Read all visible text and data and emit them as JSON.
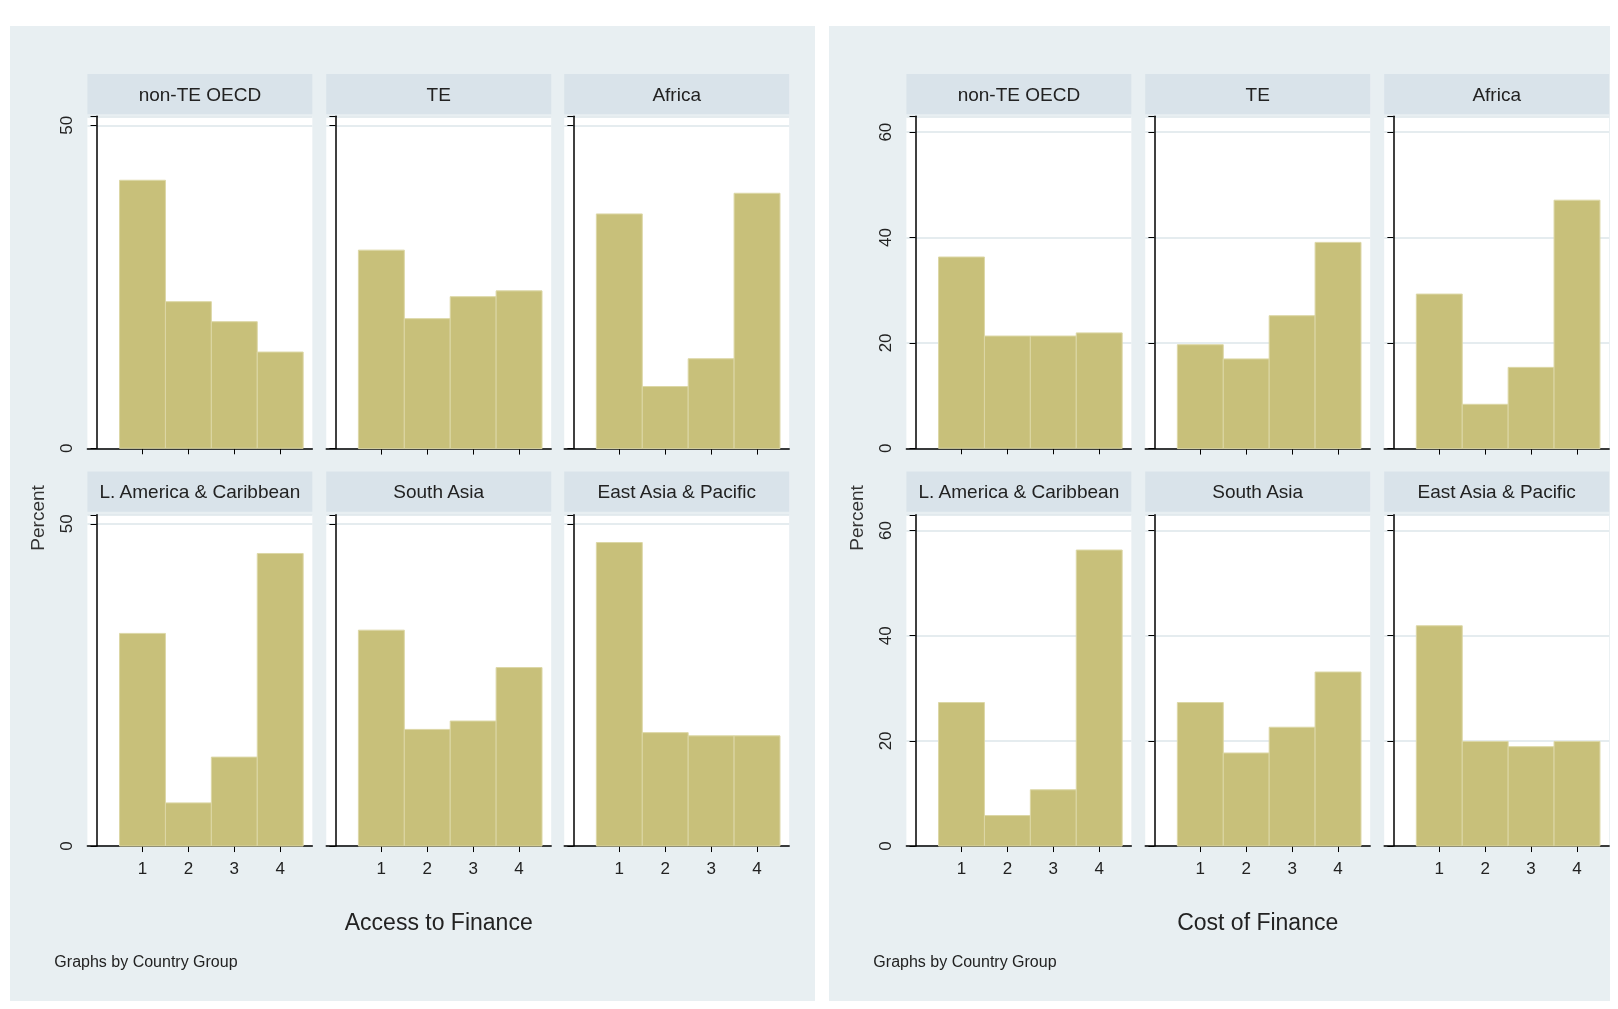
{
  "chart_data": [
    {
      "type": "histogram",
      "title": "non-TE OECD",
      "bins": [
        0.5,
        1.5,
        2.5,
        3.5,
        4.5
      ],
      "values": [
        41.5,
        22.7,
        19.6,
        14.9
      ],
      "color": "#c8c07a",
      "xlim": [
        -0.2,
        4.7
      ],
      "xticks": [
        1,
        2,
        3,
        4
      ],
      "ylim": [
        0,
        51.4
      ],
      "yticks": [
        0,
        50
      ],
      "grid": "y",
      "tick_labels": "y"
    },
    {
      "type": "histogram",
      "title": "TE",
      "bins": [
        0.5,
        1.5,
        2.5,
        3.5,
        4.5
      ],
      "values": [
        30.7,
        20.1,
        23.5,
        24.4
      ],
      "color": "#c8c07a",
      "xlim": [
        -0.2,
        4.7
      ],
      "xticks": [
        1,
        2,
        3,
        4
      ],
      "ylim": [
        0,
        51.4
      ],
      "yticks": [
        0,
        50
      ],
      "grid": "y",
      "tick_labels": false
    },
    {
      "type": "histogram",
      "title": "Africa",
      "bins": [
        0.5,
        1.5,
        2.5,
        3.5,
        4.5
      ],
      "values": [
        36.3,
        9.6,
        13.9,
        39.5
      ],
      "color": "#c8c07a",
      "xlim": [
        -0.2,
        4.7
      ],
      "xticks": [
        1,
        2,
        3,
        4
      ],
      "ylim": [
        0,
        51.4
      ],
      "yticks": [
        0,
        50
      ],
      "grid": "y",
      "tick_labels": false
    },
    {
      "type": "histogram",
      "title": "L. America & Caribbean",
      "bins": [
        0.5,
        1.5,
        2.5,
        3.5,
        4.5
      ],
      "values": [
        33.0,
        6.7,
        13.8,
        45.4
      ],
      "color": "#c8c07a",
      "xlim": [
        -0.2,
        4.7
      ],
      "xticks": [
        1,
        2,
        3,
        4
      ],
      "ylim": [
        0,
        51.4
      ],
      "yticks": [
        0,
        50
      ],
      "grid": "y",
      "ylabel": "Percent",
      "annotations": [
        "Graphs by Country Group"
      ]
    },
    {
      "type": "histogram",
      "title": "South Asia",
      "bins": [
        0.5,
        1.5,
        2.5,
        3.5,
        4.5
      ],
      "values": [
        33.5,
        18.1,
        19.4,
        27.7
      ],
      "color": "#c8c07a",
      "xlim": [
        -0.2,
        4.7
      ],
      "xticks": [
        1,
        2,
        3,
        4
      ],
      "ylim": [
        0,
        51.4
      ],
      "yticks": [
        0,
        50
      ],
      "grid": "y",
      "tick_labels": "x",
      "xlabel": "Access to Finance"
    },
    {
      "type": "histogram",
      "title": "East Asia & Pacific",
      "bins": [
        0.5,
        1.5,
        2.5,
        3.5,
        4.5
      ],
      "values": [
        47.1,
        17.6,
        17.1,
        17.1
      ],
      "color": "#c8c07a",
      "xlim": [
        -0.2,
        4.7
      ],
      "xticks": [
        1,
        2,
        3,
        4
      ],
      "ylim": [
        0,
        51.4
      ],
      "yticks": [
        0,
        50
      ],
      "grid": "y",
      "tick_labels": "x"
    },
    {
      "type": "histogram",
      "title": "non-TE OECD",
      "bins": [
        0.5,
        1.5,
        2.5,
        3.5,
        4.5
      ],
      "values": [
        36.3,
        21.3,
        21.3,
        21.9
      ],
      "color": "#c8c07a",
      "xlim": [
        -0.2,
        4.7
      ],
      "xticks": [
        1,
        2,
        3,
        4
      ],
      "ylim": [
        0,
        63
      ],
      "yticks": [
        0,
        20,
        40,
        60
      ],
      "grid": "y",
      "tick_labels": "y"
    },
    {
      "type": "histogram",
      "title": "TE",
      "bins": [
        0.5,
        1.5,
        2.5,
        3.5,
        4.5
      ],
      "values": [
        19.7,
        17.0,
        25.2,
        39.1
      ],
      "color": "#c8c07a",
      "xlim": [
        -0.2,
        4.7
      ],
      "xticks": [
        1,
        2,
        3,
        4
      ],
      "ylim": [
        0,
        63
      ],
      "yticks": [
        0,
        20,
        40,
        60
      ],
      "grid": "y",
      "tick_labels": false
    },
    {
      "type": "histogram",
      "title": "Africa",
      "bins": [
        0.5,
        1.5,
        2.5,
        3.5,
        4.5
      ],
      "values": [
        29.3,
        8.4,
        15.4,
        47.1
      ],
      "color": "#c8c07a",
      "xlim": [
        -0.2,
        4.7
      ],
      "xticks": [
        1,
        2,
        3,
        4
      ],
      "ylim": [
        0,
        63
      ],
      "yticks": [
        0,
        20,
        40,
        60
      ],
      "grid": "y",
      "tick_labels": false
    },
    {
      "type": "histogram",
      "title": "L. America & Caribbean",
      "bins": [
        0.5,
        1.5,
        2.5,
        3.5,
        4.5
      ],
      "values": [
        27.3,
        5.8,
        10.7,
        56.3
      ],
      "color": "#c8c07a",
      "xlim": [
        -0.2,
        4.7
      ],
      "xticks": [
        1,
        2,
        3,
        4
      ],
      "ylim": [
        0,
        63
      ],
      "yticks": [
        0,
        20,
        40,
        60
      ],
      "grid": "y",
      "ylabel": "Percent",
      "annotations": [
        "Graphs by Country Group"
      ]
    },
    {
      "type": "histogram",
      "title": "South Asia",
      "bins": [
        0.5,
        1.5,
        2.5,
        3.5,
        4.5
      ],
      "values": [
        27.3,
        17.7,
        22.6,
        33.1
      ],
      "color": "#c8c07a",
      "xlim": [
        -0.2,
        4.7
      ],
      "xticks": [
        1,
        2,
        3,
        4
      ],
      "ylim": [
        0,
        63
      ],
      "yticks": [
        0,
        20,
        40,
        60
      ],
      "grid": "y",
      "tick_labels": "x",
      "xlabel": "Cost of Finance"
    },
    {
      "type": "histogram",
      "title": "East Asia & Pacific",
      "bins": [
        0.5,
        1.5,
        2.5,
        3.5,
        4.5
      ],
      "values": [
        41.9,
        19.9,
        18.9,
        19.9
      ],
      "color": "#c8c07a",
      "xlim": [
        -0.2,
        4.7
      ],
      "xticks": [
        1,
        2,
        3,
        4
      ],
      "ylim": [
        0,
        63
      ],
      "yticks": [
        0,
        20,
        40,
        60
      ],
      "grid": "y",
      "tick_labels": "x"
    }
  ]
}
